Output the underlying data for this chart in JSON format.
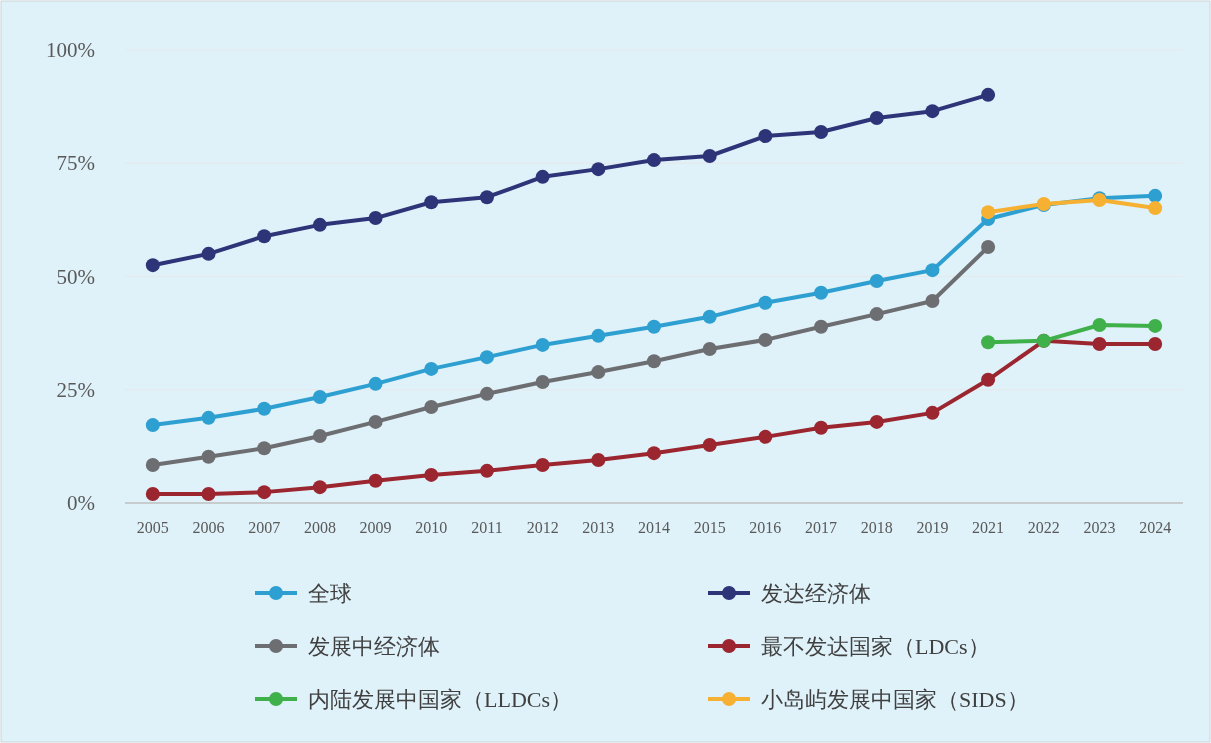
{
  "chart_data": {
    "type": "line",
    "categories": [
      "2005",
      "2006",
      "2007",
      "2008",
      "2009",
      "2010",
      "2011",
      "2012",
      "2013",
      "2014",
      "2015",
      "2016",
      "2017",
      "2018",
      "2019",
      "2021",
      "2022",
      "2023",
      "2024"
    ],
    "series": [
      {
        "name": "全球",
        "color": "#2e9fd1",
        "values": [
          17.2,
          18.8,
          20.8,
          23.4,
          26.3,
          29.6,
          32.2,
          34.9,
          36.9,
          38.9,
          41.1,
          44.2,
          46.4,
          49.0,
          51.4,
          62.7,
          65.8,
          67.3,
          67.8
        ]
      },
      {
        "name": "发达经济体",
        "color": "#2e3478",
        "values": [
          52.5,
          55.0,
          58.9,
          61.4,
          62.9,
          66.4,
          67.5,
          72.0,
          73.7,
          75.7,
          76.6,
          81.0,
          81.9,
          85.0,
          86.5,
          90.1,
          null,
          null,
          null
        ]
      },
      {
        "name": "发展中经济体",
        "color": "#6d6e71",
        "values": [
          8.4,
          10.2,
          12.1,
          14.8,
          17.9,
          21.2,
          24.1,
          26.7,
          28.9,
          31.3,
          34.0,
          36.0,
          38.9,
          41.7,
          44.6,
          56.5,
          null,
          null,
          null
        ]
      },
      {
        "name": "最不发达国家（LDCs）",
        "color": "#9b2630",
        "values": [
          2.0,
          2.0,
          2.4,
          3.5,
          4.9,
          6.2,
          7.1,
          8.4,
          9.5,
          11.0,
          12.8,
          14.6,
          16.6,
          17.9,
          19.9,
          27.2,
          35.8,
          35.1,
          35.1
        ]
      },
      {
        "name": "内陆发展中国家（LLDCs）",
        "color": "#3fb04a",
        "values": [
          null,
          null,
          null,
          null,
          null,
          null,
          null,
          null,
          null,
          null,
          null,
          null,
          null,
          null,
          null,
          35.5,
          35.8,
          39.3,
          39.1
        ]
      },
      {
        "name": "小岛屿发展中国家（SIDS）",
        "color": "#f6b132",
        "values": [
          null,
          null,
          null,
          null,
          null,
          null,
          null,
          null,
          null,
          null,
          null,
          null,
          null,
          null,
          null,
          64.2,
          66.0,
          66.9,
          65.1
        ]
      }
    ],
    "ylim": [
      0,
      100
    ],
    "yticks": [
      {
        "value": 0,
        "label": "0%"
      },
      {
        "value": 25,
        "label": "25%"
      },
      {
        "value": 50,
        "label": "50%"
      },
      {
        "value": 75,
        "label": "75%"
      },
      {
        "value": 100,
        "label": "100%"
      }
    ],
    "grid": "y",
    "legend": "bottom",
    "marker": "circle",
    "line_style": "solid"
  }
}
